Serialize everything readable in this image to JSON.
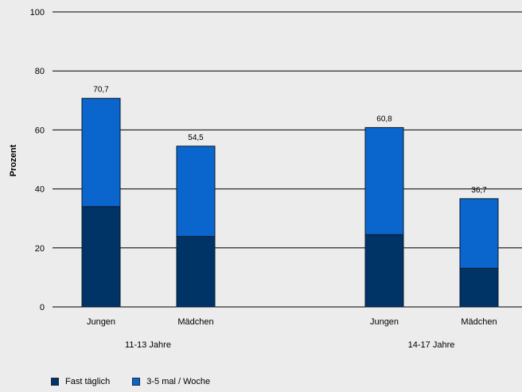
{
  "chart_data": {
    "type": "bar",
    "stacked": true,
    "ylabel": "Prozent",
    "ylim": [
      0,
      100
    ],
    "yticks": [
      0,
      20,
      40,
      60,
      80,
      100
    ],
    "grid": true,
    "groups": [
      {
        "label": "11-13 Jahre",
        "categories": [
          "Jungen",
          "Mädchen"
        ]
      },
      {
        "label": "14-17 Jahre",
        "categories": [
          "Jungen",
          "Mädchen"
        ]
      }
    ],
    "categories": [
      "Jungen",
      "Mädchen",
      "Jungen",
      "Mädchen"
    ],
    "series": [
      {
        "name": "Fast täglich",
        "color": "#003366",
        "values": [
          34.0,
          23.9,
          24.5,
          13.1
        ]
      },
      {
        "name": "3-5 mal / Woche",
        "color": "#0a66cc",
        "values": [
          36.7,
          30.6,
          36.3,
          23.6
        ]
      }
    ],
    "totals": [
      "70,7",
      "54,5",
      "60,8",
      "36,7"
    ],
    "legend_position": "bottom-left"
  }
}
